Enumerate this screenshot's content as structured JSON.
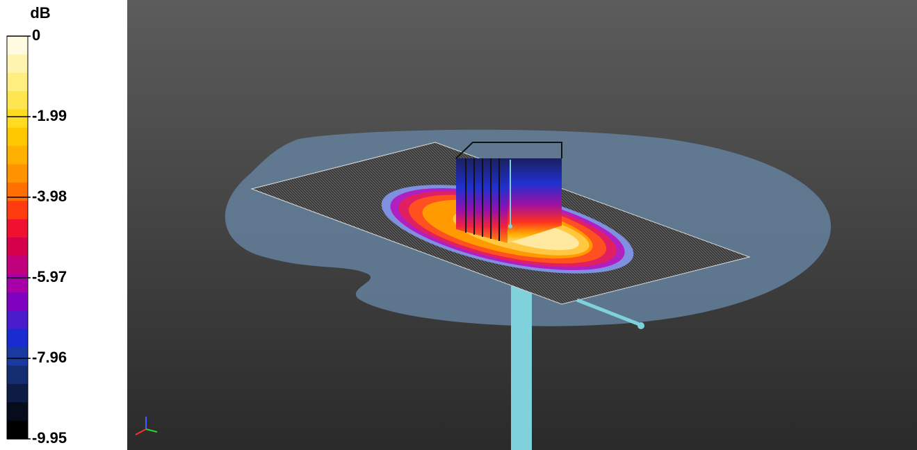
{
  "colorbar": {
    "label": "dB",
    "lim": [
      -9.95,
      0
    ],
    "ticks": [
      0,
      -1.99,
      -3.98,
      -5.97,
      -7.96,
      -9.95
    ],
    "colors": [
      "#fffbe0",
      "#fff5b0",
      "#ffef80",
      "#ffe650",
      "#ffdc20",
      "#ffc800",
      "#ffb000",
      "#ff9400",
      "#ff7000",
      "#ff3c10",
      "#f01030",
      "#d4004c",
      "#c0007c",
      "#a800a8",
      "#8000c0",
      "#4a1ccc",
      "#1a2cd0",
      "#1a3aa0",
      "#142c70",
      "#0c1c44",
      "#060c1c",
      "#000000"
    ]
  }
}
